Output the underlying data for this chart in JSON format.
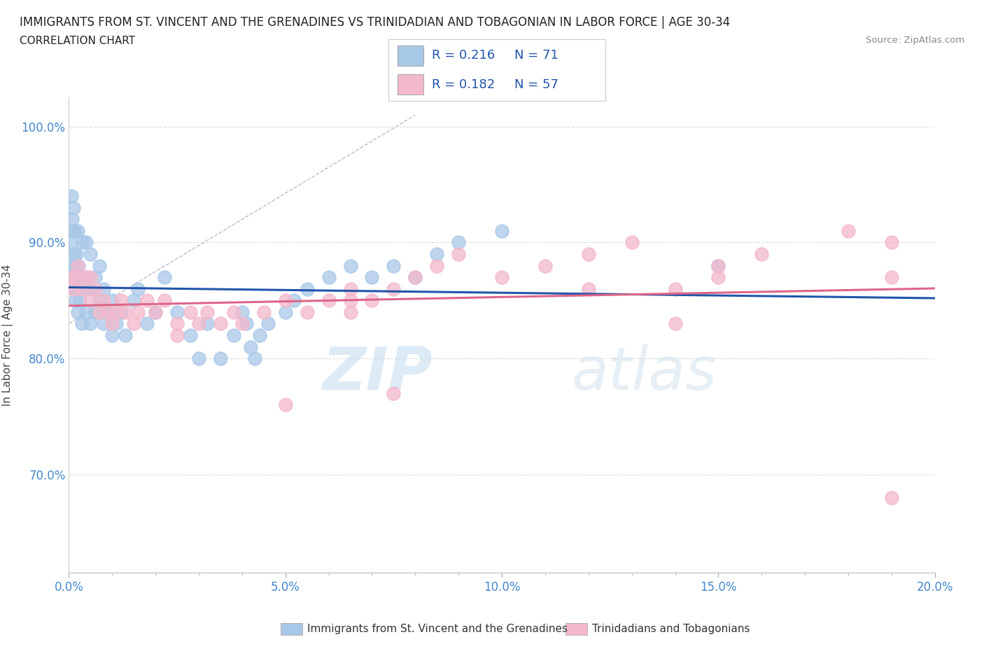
{
  "title_line1": "IMMIGRANTS FROM ST. VINCENT AND THE GRENADINES VS TRINIDADIAN AND TOBAGONIAN IN LABOR FORCE | AGE 30-34",
  "title_line2": "CORRELATION CHART",
  "source_text": "Source: ZipAtlas.com",
  "ylabel": "In Labor Force | Age 30-34",
  "x_min": 0.0,
  "x_max": 0.2,
  "y_min": 0.615,
  "y_max": 1.025,
  "x_ticks": [
    0.0,
    0.05,
    0.1,
    0.15,
    0.2
  ],
  "x_tick_labels": [
    "0.0%",
    "5.0%",
    "10.0%",
    "15.0%",
    "20.0%"
  ],
  "y_ticks": [
    0.7,
    0.8,
    0.9,
    1.0
  ],
  "y_tick_labels": [
    "70.0%",
    "80.0%",
    "90.0%",
    "100.0%"
  ],
  "blue_color": "#a8c8e8",
  "pink_color": "#f4b8cc",
  "blue_line_color": "#2255aa",
  "pink_line_color": "#dd6688",
  "blue_R": 0.216,
  "blue_N": 71,
  "pink_R": 0.182,
  "pink_N": 57,
  "legend_label_blue": "Immigrants from St. Vincent and the Grenadines",
  "legend_label_pink": "Trinidadians and Tobagonians",
  "watermark_zip": "ZIP",
  "watermark_atlas": "atlas",
  "background_color": "#ffffff",
  "grid_color": "#dddddd",
  "blue_scatter_x": [
    0.0003,
    0.0005,
    0.0006,
    0.0007,
    0.0008,
    0.0009,
    0.001,
    0.001,
    0.0012,
    0.0013,
    0.0014,
    0.0015,
    0.0016,
    0.0017,
    0.0018,
    0.002,
    0.002,
    0.002,
    0.0022,
    0.0025,
    0.003,
    0.003,
    0.0032,
    0.004,
    0.004,
    0.004,
    0.0042,
    0.005,
    0.005,
    0.005,
    0.006,
    0.006,
    0.007,
    0.007,
    0.008,
    0.008,
    0.009,
    0.01,
    0.01,
    0.011,
    0.012,
    0.013,
    0.015,
    0.016,
    0.018,
    0.02,
    0.022,
    0.025,
    0.028,
    0.03,
    0.032,
    0.035,
    0.038,
    0.04,
    0.041,
    0.042,
    0.043,
    0.044,
    0.046,
    0.05,
    0.052,
    0.055,
    0.06,
    0.065,
    0.07,
    0.075,
    0.08,
    0.085,
    0.09,
    0.1,
    0.15
  ],
  "blue_scatter_y": [
    0.87,
    0.9,
    0.94,
    0.92,
    0.88,
    0.91,
    0.87,
    0.93,
    0.89,
    0.86,
    0.91,
    0.88,
    0.85,
    0.89,
    0.86,
    0.84,
    0.87,
    0.91,
    0.88,
    0.85,
    0.83,
    0.87,
    0.9,
    0.84,
    0.87,
    0.9,
    0.86,
    0.83,
    0.86,
    0.89,
    0.84,
    0.87,
    0.85,
    0.88,
    0.83,
    0.86,
    0.84,
    0.82,
    0.85,
    0.83,
    0.84,
    0.82,
    0.85,
    0.86,
    0.83,
    0.84,
    0.87,
    0.84,
    0.82,
    0.8,
    0.83,
    0.8,
    0.82,
    0.84,
    0.83,
    0.81,
    0.8,
    0.82,
    0.83,
    0.84,
    0.85,
    0.86,
    0.87,
    0.88,
    0.87,
    0.88,
    0.87,
    0.89,
    0.9,
    0.91,
    0.88
  ],
  "pink_scatter_x": [
    0.0005,
    0.001,
    0.0015,
    0.002,
    0.003,
    0.004,
    0.005,
    0.005,
    0.006,
    0.007,
    0.008,
    0.009,
    0.01,
    0.011,
    0.012,
    0.013,
    0.015,
    0.016,
    0.018,
    0.02,
    0.022,
    0.025,
    0.028,
    0.03,
    0.032,
    0.035,
    0.038,
    0.04,
    0.045,
    0.05,
    0.055,
    0.06,
    0.065,
    0.065,
    0.07,
    0.075,
    0.08,
    0.085,
    0.09,
    0.1,
    0.11,
    0.12,
    0.13,
    0.15,
    0.15,
    0.16,
    0.18,
    0.19,
    0.19,
    0.19,
    0.14,
    0.065,
    0.025,
    0.05,
    0.075,
    0.12,
    0.14
  ],
  "pink_scatter_y": [
    0.87,
    0.86,
    0.87,
    0.88,
    0.86,
    0.87,
    0.85,
    0.87,
    0.86,
    0.84,
    0.85,
    0.84,
    0.83,
    0.84,
    0.85,
    0.84,
    0.83,
    0.84,
    0.85,
    0.84,
    0.85,
    0.83,
    0.84,
    0.83,
    0.84,
    0.83,
    0.84,
    0.83,
    0.84,
    0.85,
    0.84,
    0.85,
    0.86,
    0.84,
    0.85,
    0.86,
    0.87,
    0.88,
    0.89,
    0.87,
    0.88,
    0.89,
    0.9,
    0.87,
    0.88,
    0.89,
    0.91,
    0.87,
    0.9,
    0.68,
    0.86,
    0.85,
    0.82,
    0.76,
    0.77,
    0.86,
    0.83
  ]
}
